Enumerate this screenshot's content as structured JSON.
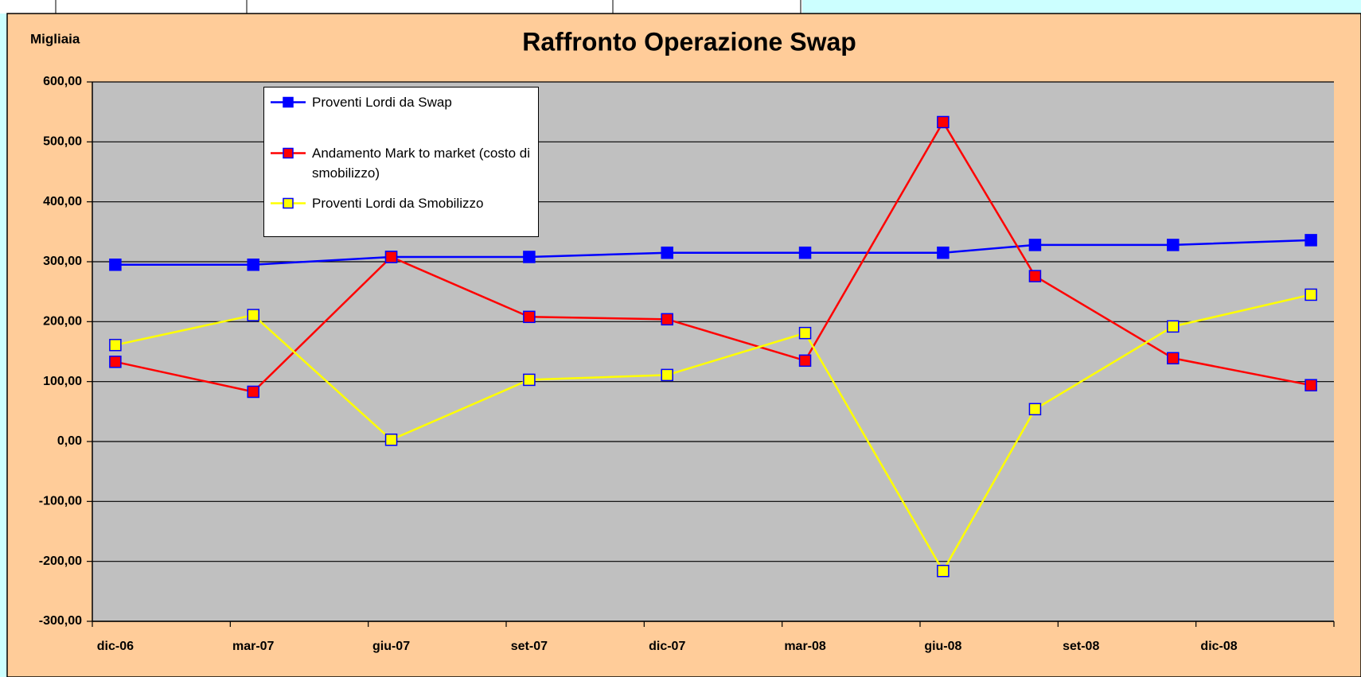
{
  "chart_data": {
    "type": "line",
    "title": "Raffronto Operazione Swap",
    "y_axis_label": "Migliaia",
    "x": [
      "2006-12",
      "2007-03",
      "2007-06",
      "2007-09",
      "2007-12",
      "2008-03",
      "2008-06",
      "2008-08",
      "2008-11",
      "2009-02"
    ],
    "xlim": [
      "2006-12",
      "2009-02"
    ],
    "xticks": [
      {
        "value": "2006-12",
        "label": "dic-06"
      },
      {
        "value": "2007-03",
        "label": "mar-07"
      },
      {
        "value": "2007-06",
        "label": "giu-07"
      },
      {
        "value": "2007-09",
        "label": "set-07"
      },
      {
        "value": "2007-12",
        "label": "dic-07"
      },
      {
        "value": "2008-03",
        "label": "mar-08"
      },
      {
        "value": "2008-06",
        "label": "giu-08"
      },
      {
        "value": "2008-09",
        "label": "set-08"
      },
      {
        "value": "2008-12",
        "label": "dic-08"
      }
    ],
    "ylim": [
      -300,
      600
    ],
    "yticks": [
      {
        "value": -300,
        "label": "-300,00"
      },
      {
        "value": -200,
        "label": "-200,00"
      },
      {
        "value": -100,
        "label": "-100,00"
      },
      {
        "value": 0,
        "label": "0,00"
      },
      {
        "value": 100,
        "label": "100,00"
      },
      {
        "value": 200,
        "label": "200,00"
      },
      {
        "value": 300,
        "label": "300,00"
      },
      {
        "value": 400,
        "label": "400,00"
      },
      {
        "value": 500,
        "label": "500,00"
      },
      {
        "value": 600,
        "label": "600,00"
      }
    ],
    "grid": true,
    "legend": "upper left",
    "series": [
      {
        "name": "Proventi Lordi da Swap",
        "color": "#0000ff",
        "marker_fill": "#0000ff",
        "marker_edge": "#0000ff",
        "values": [
          295,
          295,
          308,
          308,
          315,
          315,
          315,
          328,
          328,
          336
        ]
      },
      {
        "name": "Andamento Mark to market (costo di smobilizzo)",
        "color": "#ff0000",
        "marker_fill": "#ff0000",
        "marker_edge": "#0000ff",
        "values": [
          133,
          83,
          308,
          208,
          204,
          135,
          533,
          276,
          139,
          94
        ]
      },
      {
        "name": "Proventi Lordi da Smobilizzo",
        "color": "#ffff00",
        "marker_fill": "#ffff00",
        "marker_edge": "#0000ff",
        "values": [
          161,
          211,
          3,
          103,
          111,
          181,
          -216,
          54,
          192,
          245
        ]
      }
    ]
  }
}
